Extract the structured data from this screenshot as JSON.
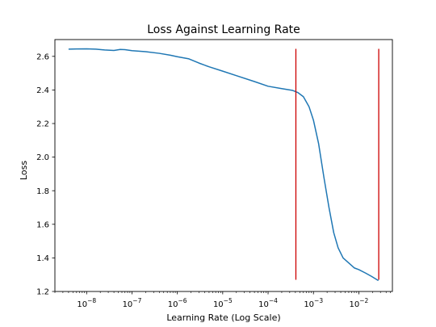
{
  "chart_data": {
    "type": "line",
    "title": "Loss Against Learning Rate",
    "xlabel": "Learning Rate (Log Scale)",
    "ylabel": "Loss",
    "x_scale": "log",
    "xlim": [
      2e-09,
      0.055
    ],
    "ylim": [
      1.2,
      2.7
    ],
    "x_ticks": [
      {
        "value": 1e-08,
        "base": "10",
        "exp": "−8"
      },
      {
        "value": 1e-07,
        "base": "10",
        "exp": "−7"
      },
      {
        "value": 1e-06,
        "base": "10",
        "exp": "−6"
      },
      {
        "value": 1e-05,
        "base": "10",
        "exp": "−5"
      },
      {
        "value": 0.0001,
        "base": "10",
        "exp": "−4"
      },
      {
        "value": 0.001,
        "base": "10",
        "exp": "−3"
      },
      {
        "value": 0.01,
        "base": "10",
        "exp": "−2"
      }
    ],
    "y_ticks": [
      {
        "value": 1.2,
        "label": "1.2"
      },
      {
        "value": 1.4,
        "label": "1.4"
      },
      {
        "value": 1.6,
        "label": "1.6"
      },
      {
        "value": 1.8,
        "label": "1.8"
      },
      {
        "value": 2.0,
        "label": "2.0"
      },
      {
        "value": 2.2,
        "label": "2.2"
      },
      {
        "value": 2.4,
        "label": "2.4"
      },
      {
        "value": 2.6,
        "label": "2.6"
      }
    ],
    "grid": false,
    "series": [
      {
        "color": "#1f77b4",
        "points": [
          [
            4e-09,
            2.643
          ],
          [
            6e-09,
            2.644
          ],
          [
            1e-08,
            2.645
          ],
          [
            1.6e-08,
            2.643
          ],
          [
            2.5e-08,
            2.638
          ],
          [
            4e-08,
            2.635
          ],
          [
            5.5e-08,
            2.641
          ],
          [
            7e-08,
            2.64
          ],
          [
            1e-07,
            2.634
          ],
          [
            2e-07,
            2.628
          ],
          [
            4e-07,
            2.618
          ],
          [
            7e-07,
            2.607
          ],
          [
            1e-06,
            2.598
          ],
          [
            1.8e-06,
            2.585
          ],
          [
            3e-06,
            2.56
          ],
          [
            5e-06,
            2.538
          ],
          [
            1e-05,
            2.512
          ],
          [
            2e-05,
            2.485
          ],
          [
            5e-05,
            2.45
          ],
          [
            0.0001,
            2.422
          ],
          [
            0.0002,
            2.408
          ],
          [
            0.00035,
            2.397
          ],
          [
            0.00045,
            2.385
          ],
          [
            0.0006,
            2.36
          ],
          [
            0.0008,
            2.3
          ],
          [
            0.001,
            2.22
          ],
          [
            0.0013,
            2.08
          ],
          [
            0.0017,
            1.88
          ],
          [
            0.0022,
            1.7
          ],
          [
            0.0028,
            1.55
          ],
          [
            0.0035,
            1.46
          ],
          [
            0.0045,
            1.4
          ],
          [
            0.006,
            1.37
          ],
          [
            0.008,
            1.34
          ],
          [
            0.01,
            1.33
          ],
          [
            0.014,
            1.31
          ],
          [
            0.019,
            1.29
          ],
          [
            0.027,
            1.265
          ]
        ]
      }
    ],
    "vertical_lines": [
      {
        "x": 0.00041,
        "y0": 1.27,
        "y1": 2.645,
        "color": "#cc0000"
      },
      {
        "x": 0.0275,
        "y0": 1.27,
        "y1": 2.645,
        "color": "#cc0000"
      }
    ]
  }
}
